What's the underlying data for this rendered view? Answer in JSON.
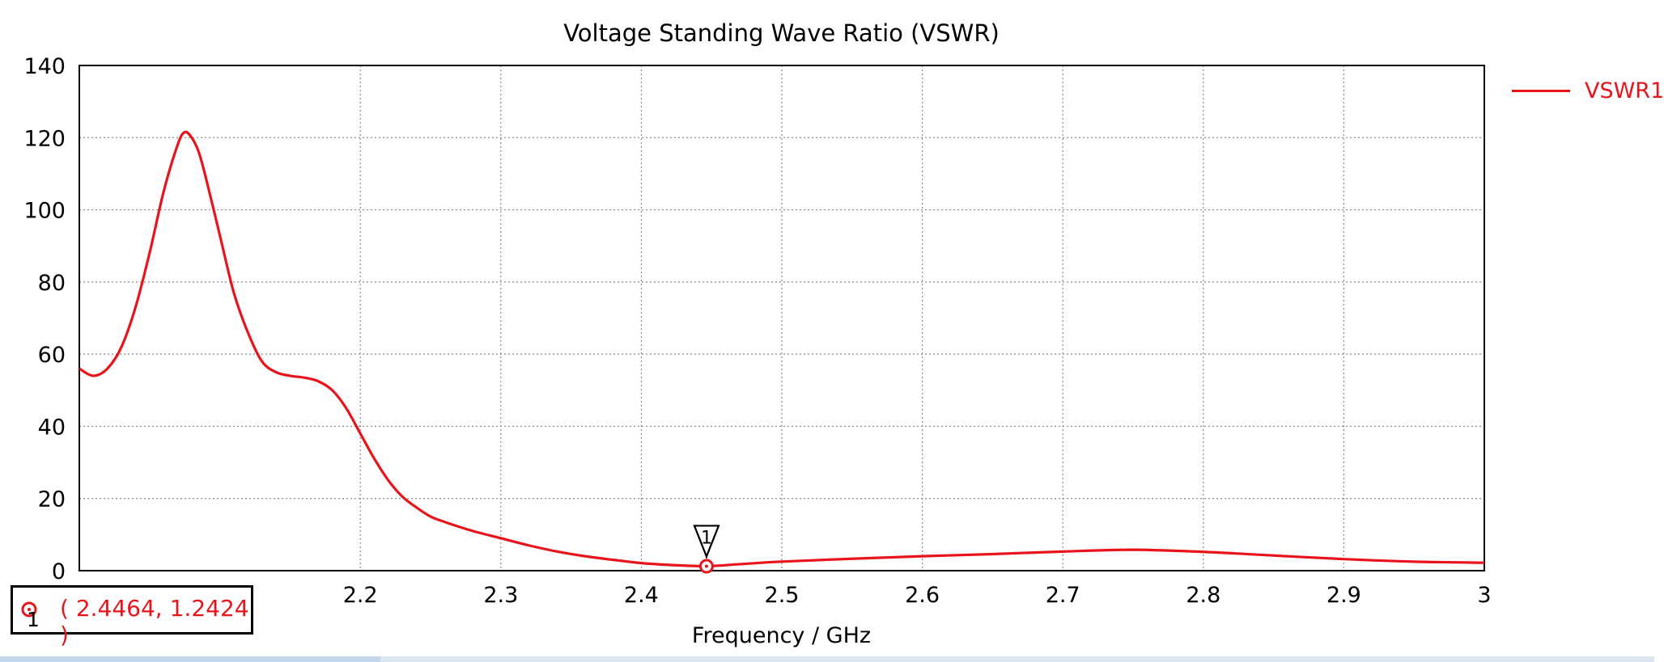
{
  "chart_data": {
    "type": "line",
    "title": "Voltage Standing Wave Ratio (VSWR)",
    "xlabel": "Frequency / GHz",
    "ylabel": "",
    "xlim": [
      2.0,
      3.0
    ],
    "ylim": [
      0,
      140
    ],
    "x_ticks": [
      "2.2",
      "2.3",
      "2.4",
      "2.5",
      "2.6",
      "2.7",
      "2.8",
      "2.9",
      "3"
    ],
    "y_ticks": [
      "0",
      "20",
      "40",
      "60",
      "80",
      "100",
      "120",
      "140"
    ],
    "grid": true,
    "legend_position": "top-right",
    "series": [
      {
        "name": "VSWR1",
        "color": "#e8141b",
        "x": [
          2.0,
          2.01,
          2.02,
          2.03,
          2.04,
          2.05,
          2.06,
          2.07,
          2.075,
          2.08,
          2.085,
          2.09,
          2.1,
          2.11,
          2.12,
          2.13,
          2.14,
          2.15,
          2.16,
          2.17,
          2.18,
          2.19,
          2.2,
          2.21,
          2.22,
          2.23,
          2.24,
          2.25,
          2.26,
          2.28,
          2.3,
          2.32,
          2.34,
          2.36,
          2.38,
          2.4,
          2.42,
          2.4464,
          2.47,
          2.5,
          2.55,
          2.6,
          2.65,
          2.7,
          2.75,
          2.8,
          2.85,
          2.9,
          2.95,
          3.0
        ],
        "y": [
          56,
          54,
          56,
          62,
          73,
          88,
          105,
          118,
          121.5,
          120,
          116,
          109,
          93,
          77,
          66,
          58,
          55,
          54,
          53.5,
          52.5,
          50,
          45,
          38,
          31,
          25,
          20.5,
          17.5,
          15,
          13.5,
          11,
          9,
          7,
          5.3,
          4,
          3,
          2.1,
          1.6,
          1.2424,
          1.8,
          2.5,
          3.3,
          4,
          4.6,
          5.3,
          5.8,
          5.2,
          4.2,
          3.2,
          2.5,
          2.2
        ]
      }
    ],
    "markers": [
      {
        "id": "1",
        "x": 2.4464,
        "y": 1.2424,
        "label": "( 2.4464, 1.2424 )"
      }
    ]
  },
  "legend": {
    "label": "VSWR1"
  },
  "marker_readout": {
    "id": "1",
    "value": "( 2.4464, 1.2424 )"
  }
}
